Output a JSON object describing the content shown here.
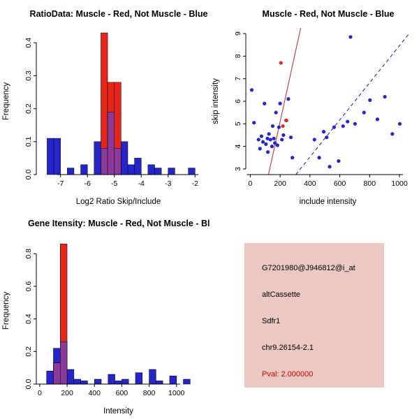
{
  "app": {
    "background": "#ffffff"
  },
  "colors": {
    "blue": "#2525cd",
    "red": "#e8251a",
    "overlap": "#8b3a99",
    "line_red": "#cc3333",
    "line_blue": "#2b2b9e",
    "axis": "#000000",
    "text": "#000000",
    "pval": "#cc0000",
    "info_bg": "#ebc8c1"
  },
  "chart_data": [
    {
      "type": "bar",
      "title": "RatioData: Muscle - Red, Not Muscle - Blue",
      "xlabel": "Log2 Ratio Skip/Include",
      "ylabel": "Frequency",
      "xlim": [
        -7.9,
        -1.8
      ],
      "ylim": [
        0,
        0.445
      ],
      "xticks": [
        -7,
        -6,
        -5,
        -4,
        -3,
        -2
      ],
      "xtick_labels": [
        "-7",
        "-6",
        "-5",
        "-4",
        "-3",
        "-2"
      ],
      "yticks": [
        0,
        0.1,
        0.2,
        0.3,
        0.4
      ],
      "ytick_labels": [
        "0.0",
        "0.1",
        "0.2",
        "0.3",
        "0.4"
      ],
      "binwidth": 0.25,
      "series": [
        {
          "name": "Not Muscle (blue)",
          "color_key": "blue",
          "bins": [
            [
              -7.5,
              0.11
            ],
            [
              -7.25,
              0.11
            ],
            [
              -6.75,
              0.02
            ],
            [
              -6.25,
              0.03
            ],
            [
              -5.75,
              0.1
            ],
            [
              -5.5,
              0.08
            ],
            [
              -5.25,
              0.19
            ],
            [
              -5.0,
              0.08
            ],
            [
              -4.75,
              0.1
            ],
            [
              -4.5,
              0.03
            ],
            [
              -4.25,
              0.05
            ],
            [
              -3.75,
              0.03
            ],
            [
              -3.5,
              0.02
            ],
            [
              -3.0,
              0.02
            ],
            [
              -2.25,
              0.02
            ]
          ]
        },
        {
          "name": "Muscle (red)",
          "color_key": "red",
          "bins": [
            [
              -5.5,
              0.43
            ],
            [
              -5.25,
              0.28
            ],
            [
              -5.0,
              0.28
            ]
          ]
        }
      ]
    },
    {
      "type": "scatter",
      "title": "Muscle - Red, Not Muscle - Blue",
      "xlabel": "include intensity",
      "ylabel": "skip intensity",
      "xlim": [
        -30,
        1070
      ],
      "ylim": [
        2.75,
        9.25
      ],
      "xticks": [
        0,
        200,
        400,
        600,
        800,
        1000
      ],
      "xtick_labels": [
        "0",
        "200",
        "400",
        "600",
        "800",
        "1000"
      ],
      "yticks": [
        3,
        4,
        5,
        6,
        7,
        8,
        9
      ],
      "ytick_labels": [
        "3",
        "4",
        "5",
        "6",
        "7",
        "8",
        "9"
      ],
      "series": [
        {
          "name": "Not Muscle (blue)",
          "color_key": "blue",
          "points": [
            [
              10,
              6.5
            ],
            [
              25,
              5.05
            ],
            [
              55,
              4.3
            ],
            [
              65,
              3.9
            ],
            [
              75,
              4.45
            ],
            [
              85,
              4.2
            ],
            [
              95,
              5.9
            ],
            [
              105,
              4.1
            ],
            [
              115,
              4.35
            ],
            [
              118,
              3.75
            ],
            [
              125,
              4.55
            ],
            [
              135,
              4.3
            ],
            [
              145,
              4.0
            ],
            [
              150,
              4.9
            ],
            [
              158,
              4.35
            ],
            [
              165,
              4.15
            ],
            [
              172,
              5.5
            ],
            [
              182,
              4.05
            ],
            [
              192,
              4.85
            ],
            [
              200,
              5.9
            ],
            [
              212,
              4.3
            ],
            [
              222,
              4.5
            ],
            [
              242,
              5.15
            ],
            [
              255,
              6.1
            ],
            [
              272,
              4.4
            ],
            [
              282,
              3.5
            ],
            [
              430,
              4.3
            ],
            [
              462,
              3.5
            ],
            [
              492,
              4.65
            ],
            [
              512,
              4.4
            ],
            [
              532,
              3.1
            ],
            [
              562,
              4.85
            ],
            [
              592,
              3.35
            ],
            [
              622,
              4.9
            ],
            [
              652,
              5.1
            ],
            [
              672,
              8.85
            ],
            [
              702,
              5.0
            ],
            [
              762,
              5.5
            ],
            [
              802,
              6.05
            ],
            [
              852,
              5.2
            ],
            [
              902,
              6.2
            ],
            [
              952,
              4.55
            ],
            [
              1002,
              5.0
            ]
          ]
        },
        {
          "name": "Muscle (red)",
          "color_key": "red",
          "points": [
            [
              205,
              7.7
            ],
            [
              240,
              5.15
            ],
            [
              218,
              4.9
            ]
          ]
        }
      ],
      "lines": [
        {
          "name": "muscle-fit",
          "color_key": "line_red",
          "style": "solid",
          "from": [
            122,
            2.75
          ],
          "to": [
            338,
            9.25
          ]
        },
        {
          "name": "not-muscle-fit",
          "color_key": "line_blue",
          "style": "dashed",
          "from": [
            305,
            2.75
          ],
          "to": [
            1065,
            9.0
          ]
        }
      ]
    },
    {
      "type": "bar",
      "title": "Gene Itensity: Muscle - Red, Not Muscle - Blue",
      "xlabel": "Intensity",
      "ylabel": "Frequency",
      "xlim": [
        -25,
        1175
      ],
      "ylim": [
        0,
        0.9
      ],
      "xticks": [
        0,
        200,
        400,
        600,
        800,
        1000
      ],
      "xtick_labels": [
        "0",
        "200",
        "400",
        "600",
        "800",
        "1000"
      ],
      "yticks": [
        0,
        0.2,
        0.4,
        0.6,
        0.8
      ],
      "ytick_labels": [
        "0.0",
        "0.2",
        "0.4",
        "0.6",
        "0.8"
      ],
      "binwidth": 50,
      "series": [
        {
          "name": "Not Muscle (blue)",
          "color_key": "blue",
          "bins": [
            [
              50,
              0.08
            ],
            [
              100,
              0.22
            ],
            [
              150,
              0.26
            ],
            [
              200,
              0.09
            ],
            [
              250,
              0.03
            ],
            [
              300,
              0.02
            ],
            [
              400,
              0.03
            ],
            [
              500,
              0.06
            ],
            [
              550,
              0.02
            ],
            [
              600,
              0.03
            ],
            [
              700,
              0.07
            ],
            [
              800,
              0.09
            ],
            [
              850,
              0.02
            ],
            [
              950,
              0.05
            ],
            [
              1050,
              0.03
            ]
          ]
        },
        {
          "name": "Muscle (red)",
          "color_key": "red",
          "bins": [
            [
              100,
              0.13
            ],
            [
              150,
              0.86
            ]
          ]
        }
      ]
    }
  ],
  "info_panel": {
    "lines": [
      {
        "text": "G7201980@J946812@i_at",
        "color_key": "text"
      },
      {
        "text": "altCassette",
        "color_key": "text"
      },
      {
        "text": "Sdfr1",
        "color_key": "text"
      },
      {
        "text": "chr9.26154-2.1",
        "color_key": "text"
      },
      {
        "text": "Pval: 2.000000",
        "color_key": "pval"
      }
    ]
  }
}
